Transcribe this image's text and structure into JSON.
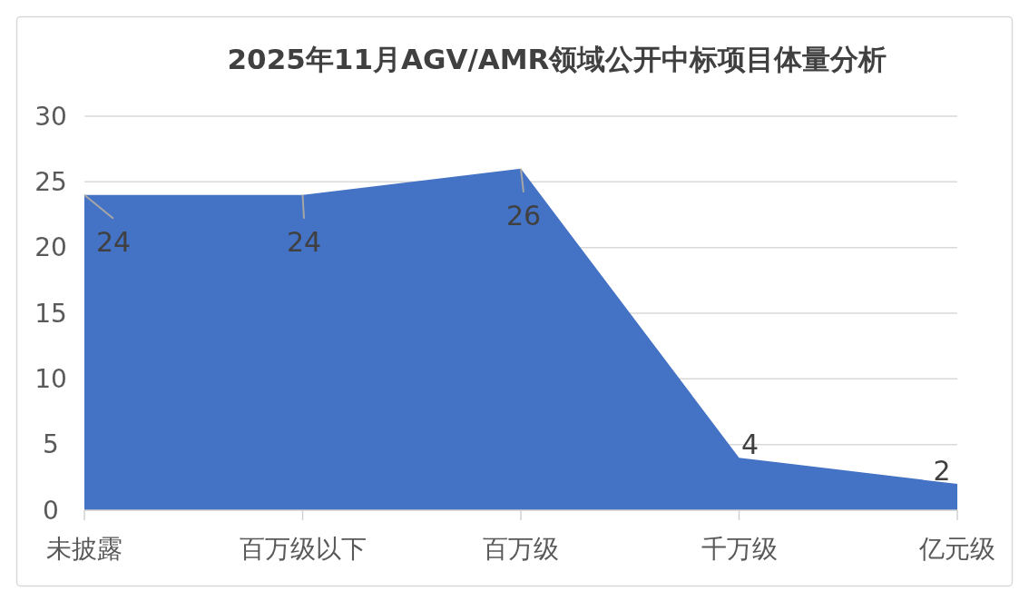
{
  "chart_data": {
    "type": "area",
    "title": "2025年11月AGV/AMR领域公开中标项目体量分析",
    "categories": [
      "未披露",
      "百万级以下",
      "百万级",
      "千万级",
      "亿元级"
    ],
    "values": [
      24,
      24,
      26,
      4,
      2
    ],
    "color": "#4472c4",
    "ylim": [
      0,
      30
    ],
    "yticks": [
      0,
      5,
      10,
      15,
      20,
      25,
      30
    ],
    "grid": "y",
    "data_labels": true
  }
}
